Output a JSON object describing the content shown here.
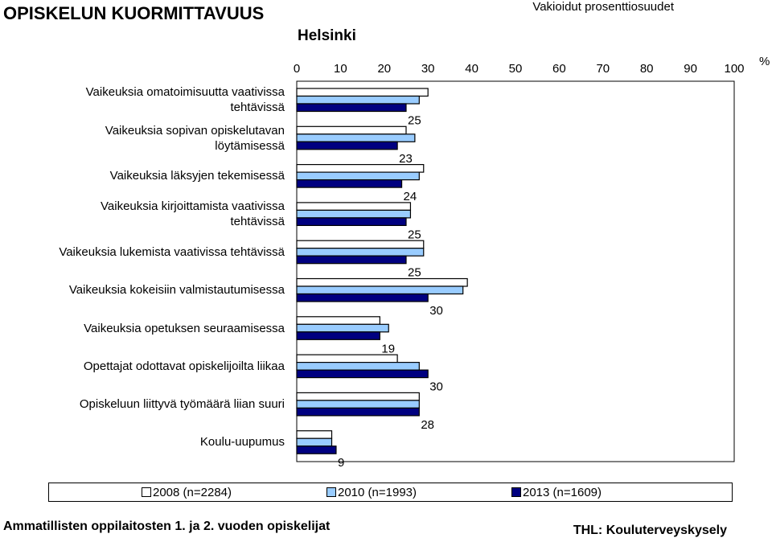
{
  "header": {
    "title": "OPISKELUN KUORMITTAVUUS",
    "subtitle": "Vakioidut prosenttiosuudet",
    "city": "Helsinki"
  },
  "footer": {
    "left": "Ammatillisten oppilaitosten 1. ja 2. vuoden opiskelijat",
    "right": "THL: Kouluterveyskysely"
  },
  "colors": {
    "series_2008": "#ffffff",
    "series_2010": "#99ccff",
    "series_2013": "#000080",
    "border": "#000000"
  },
  "chart_data": {
    "type": "bar",
    "orientation": "horizontal",
    "unit_label": "%",
    "xlim": [
      0,
      100
    ],
    "ticks": [
      0,
      10,
      20,
      30,
      40,
      50,
      60,
      70,
      80,
      90,
      100
    ],
    "categories": [
      "Vaikeuksia omatoimisuutta vaativissa tehtävissä",
      "Vaikeuksia sopivan opiskelutavan löytämisessä",
      "Vaikeuksia läksyjen tekemisessä",
      "Vaikeuksia kirjoittamista vaativissa tehtävissä",
      "Vaikeuksia lukemista vaativissa tehtävissä",
      "Vaikeuksia kokeisiin valmistautumisessa",
      "Vaikeuksia opetuksen seuraamisessa",
      "Opettajat odottavat opiskelijoilta liikaa",
      "Opiskeluun liittyvä työmäärä liian suuri",
      "Koulu-uupumus"
    ],
    "series": [
      {
        "name": "2008 (n=2284)",
        "values": [
          30,
          25,
          29,
          26,
          29,
          39,
          19,
          23,
          28,
          8
        ]
      },
      {
        "name": "2010 (n=1993)",
        "values": [
          28,
          27,
          28,
          26,
          29,
          38,
          21,
          28,
          28,
          8
        ]
      },
      {
        "name": "2013 (n=1609)",
        "values": [
          25,
          23,
          24,
          25,
          25,
          30,
          19,
          30,
          28,
          9
        ]
      }
    ],
    "data_labels": [
      "25",
      "23",
      "24",
      "25",
      "25",
      "30",
      "19",
      "30",
      "28",
      "9"
    ],
    "legend_position": "bottom",
    "grid": false
  }
}
